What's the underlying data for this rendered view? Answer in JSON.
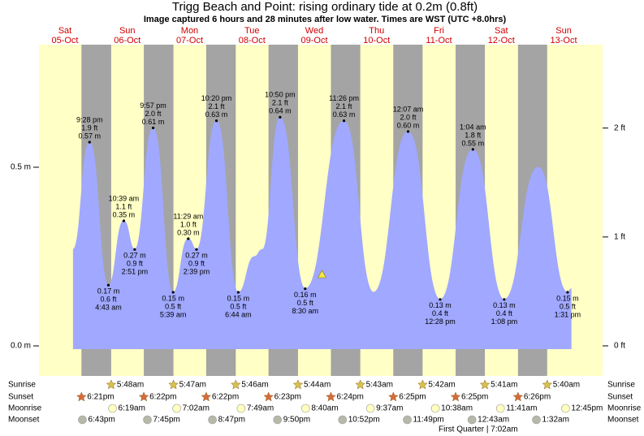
{
  "chart_data": {
    "type": "tide",
    "title": "Trigg Beach and Point: rising  ordinary tide at 0.2m (0.8ft)",
    "subtitle": "Image captured 6 hours and 28 minutes after low water. Times are WST (UTC +8.0hrs)",
    "categories": [
      "Sat",
      "Sun",
      "Mon",
      "Tue",
      "Wed",
      "Thu",
      "Fri",
      "Sat",
      "Sun"
    ],
    "dates": [
      "05-Oct",
      "06-Oct",
      "07-Oct",
      "08-Oct",
      "09-Oct",
      "10-Oct",
      "11-Oct",
      "12-Oct",
      "13-Oct"
    ],
    "xlim": [
      2,
      219
    ],
    "ylim": [
      -0.084,
      0.843
    ],
    "yticks": [
      {
        "value": 0.5,
        "label": "0.5 m"
      },
      {
        "value": 0,
        "label": "0.0 m"
      }
    ],
    "y2lim": [
      -0.276,
      2.766
    ],
    "y2ticks": [
      {
        "value": 2,
        "label": "2 ft"
      },
      {
        "value": 1,
        "label": "1 ft"
      },
      {
        "value": 0,
        "label": "0 ft"
      }
    ],
    "day_color": "#ffffc6",
    "night_color": "#a4a4a4",
    "series": [
      {
        "color": "#a0a8ff",
        "x": [
          15.1,
          21.47,
          28.72,
          34.65,
          38.85,
          45.95,
          53.65,
          59.48,
          62.65,
          70.33,
          78.73,
          85,
          88,
          94.83,
          104.5,
          119.43,
          130.8,
          144.12,
          156.47,
          169.07,
          181.13,
          194.2,
          205.52,
          207
        ],
        "values": [
          0.27,
          0.57,
          0.17,
          0.35,
          0.27,
          0.61,
          0.15,
          0.3,
          0.27,
          0.63,
          0.15,
          0.25,
          0.27,
          0.64,
          0.16,
          0.63,
          0.15,
          0.6,
          0.13,
          0.55,
          0.13,
          0.5,
          0.15,
          0.16
        ],
        "value_labels": [
          null,
          "0.57 m",
          "0.17 m",
          "0.35 m",
          "0.27 m",
          "0.61 m",
          "0.15 m",
          "0.30 m",
          "0.27 m",
          "0.63 m",
          "0.15 m",
          null,
          null,
          "0.64 m",
          "0.16 m",
          "0.63 m",
          null,
          "0.60 m",
          "0.13 m",
          "0.55 m",
          "0.13 m",
          null,
          "0.15 m",
          null
        ],
        "ft_labels": [
          null,
          "1.9 ft",
          "0.6 ft",
          "1.1 ft",
          "0.9 ft",
          "2.0 ft",
          "0.5 ft",
          "1.0 ft",
          "0.9 ft",
          "2.1 ft",
          "0.5 ft",
          null,
          null,
          "2.1 ft",
          "0.5 ft",
          "2.1 ft",
          null,
          "2.0 ft",
          "0.4 ft",
          "1.8 ft",
          "0.4 ft",
          null,
          "0.5 ft",
          null
        ],
        "time_labels": [
          null,
          "9:28 pm",
          "4:43 am",
          "10:39 am",
          "2:51 pm",
          "9:57 pm",
          "5:39 am",
          "11:29 am",
          "2:39 pm",
          "10:20 pm",
          "6:44 am",
          null,
          null,
          "10:50 pm",
          "8:30 am",
          "11:26 pm",
          null,
          "12:07 am",
          "12:28 pm",
          "1:04 am",
          "1:08 pm",
          null,
          "1:31 pm",
          null
        ]
      }
    ],
    "current": {
      "x": 110.97,
      "value": 0.2,
      "color": "#f5e642"
    },
    "almanac": [
      {
        "label": "Sunrise",
        "icon": "star",
        "color": "#d8c24a",
        "times": [
          "5:48am",
          "5:47am",
          "5:46am",
          "5:44am",
          "5:43am",
          "5:42am",
          "5:41am",
          "5:40am"
        ]
      },
      {
        "label": "Sunset",
        "icon": "star",
        "color": "#d96a3a",
        "times": [
          "6:21pm",
          "6:22pm",
          "6:22pm",
          "6:23pm",
          "6:24pm",
          "6:25pm",
          "6:25pm",
          "6:26pm"
        ]
      },
      {
        "label": "Moonrise",
        "icon": "circle",
        "color": "#ffffc0",
        "times": [
          "6:19am",
          "7:02am",
          "7:49am",
          "8:40am",
          "9:37am",
          "10:38am",
          "11:41am",
          "12:45pm"
        ]
      },
      {
        "label": "Moonset",
        "icon": "circle",
        "color": "#b8b8a8",
        "times": [
          "6:43pm",
          "7:45pm",
          "8:47pm",
          "9:50pm",
          "10:52pm",
          "11:49pm",
          "12:43am",
          "1:32am"
        ]
      }
    ],
    "moon_phase": "First Quarter | 7:02am"
  }
}
